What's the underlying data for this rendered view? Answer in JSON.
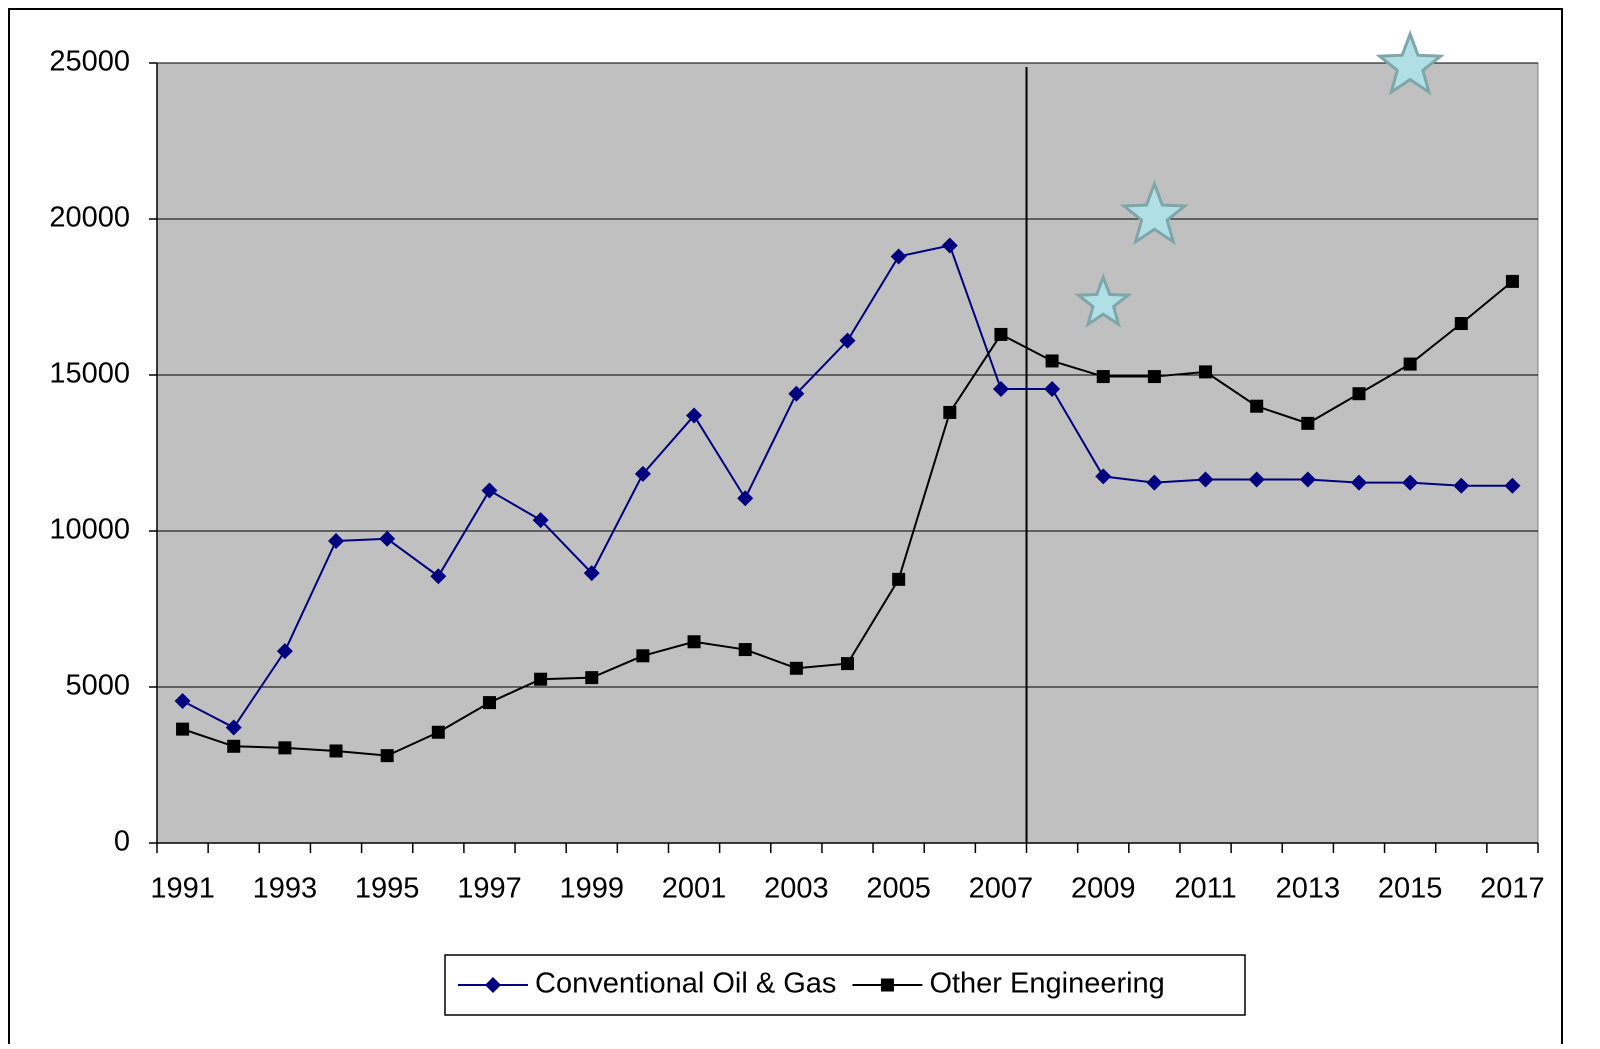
{
  "chart_data": {
    "type": "line",
    "categories": [
      "1991",
      null,
      "1993",
      null,
      "1995",
      null,
      "1997",
      null,
      "1999",
      null,
      "2001",
      null,
      "2003",
      null,
      "2005",
      null,
      "2007",
      null,
      "2009",
      null,
      "2011",
      null,
      "2013",
      null,
      "2015",
      null,
      "2017"
    ],
    "series": [
      {
        "name": "Conventional Oil & Gas",
        "color": "#000080",
        "marker": "diamond",
        "values": [
          4550,
          3700,
          6150,
          9680,
          9750,
          8550,
          11300,
          10350,
          8650,
          11830,
          13700,
          11050,
          14400,
          16100,
          18800,
          19150,
          14550,
          14550,
          11750,
          11550,
          11650,
          11650,
          11650,
          11550,
          11550,
          11450,
          11450
        ]
      },
      {
        "name": "Other Engineering",
        "color": "#000000",
        "marker": "square",
        "values": [
          3650,
          3100,
          3050,
          2950,
          2800,
          3550,
          4500,
          5250,
          5300,
          6000,
          6450,
          6200,
          5600,
          5750,
          8450,
          13800,
          16300,
          15450,
          14950,
          14950,
          15100,
          14000,
          13450,
          14400,
          15350,
          16650,
          18000
        ]
      },
      {
        "color": "#b0e0e6",
        "marker": "star",
        "values": [
          null,
          null,
          null,
          null,
          null,
          null,
          null,
          null,
          null,
          null,
          null,
          null,
          null,
          null,
          null,
          null,
          null,
          null,
          17300,
          20100,
          null,
          null,
          null,
          null,
          24900,
          null,
          null
        ]
      }
    ],
    "ylim": [
      0,
      25000
    ],
    "yticks": [
      0,
      5000,
      10000,
      15000,
      20000,
      25000
    ],
    "grid": true,
    "plot_background": "#c0c0c0",
    "divider_after_category": 16,
    "legend": "bottom"
  }
}
